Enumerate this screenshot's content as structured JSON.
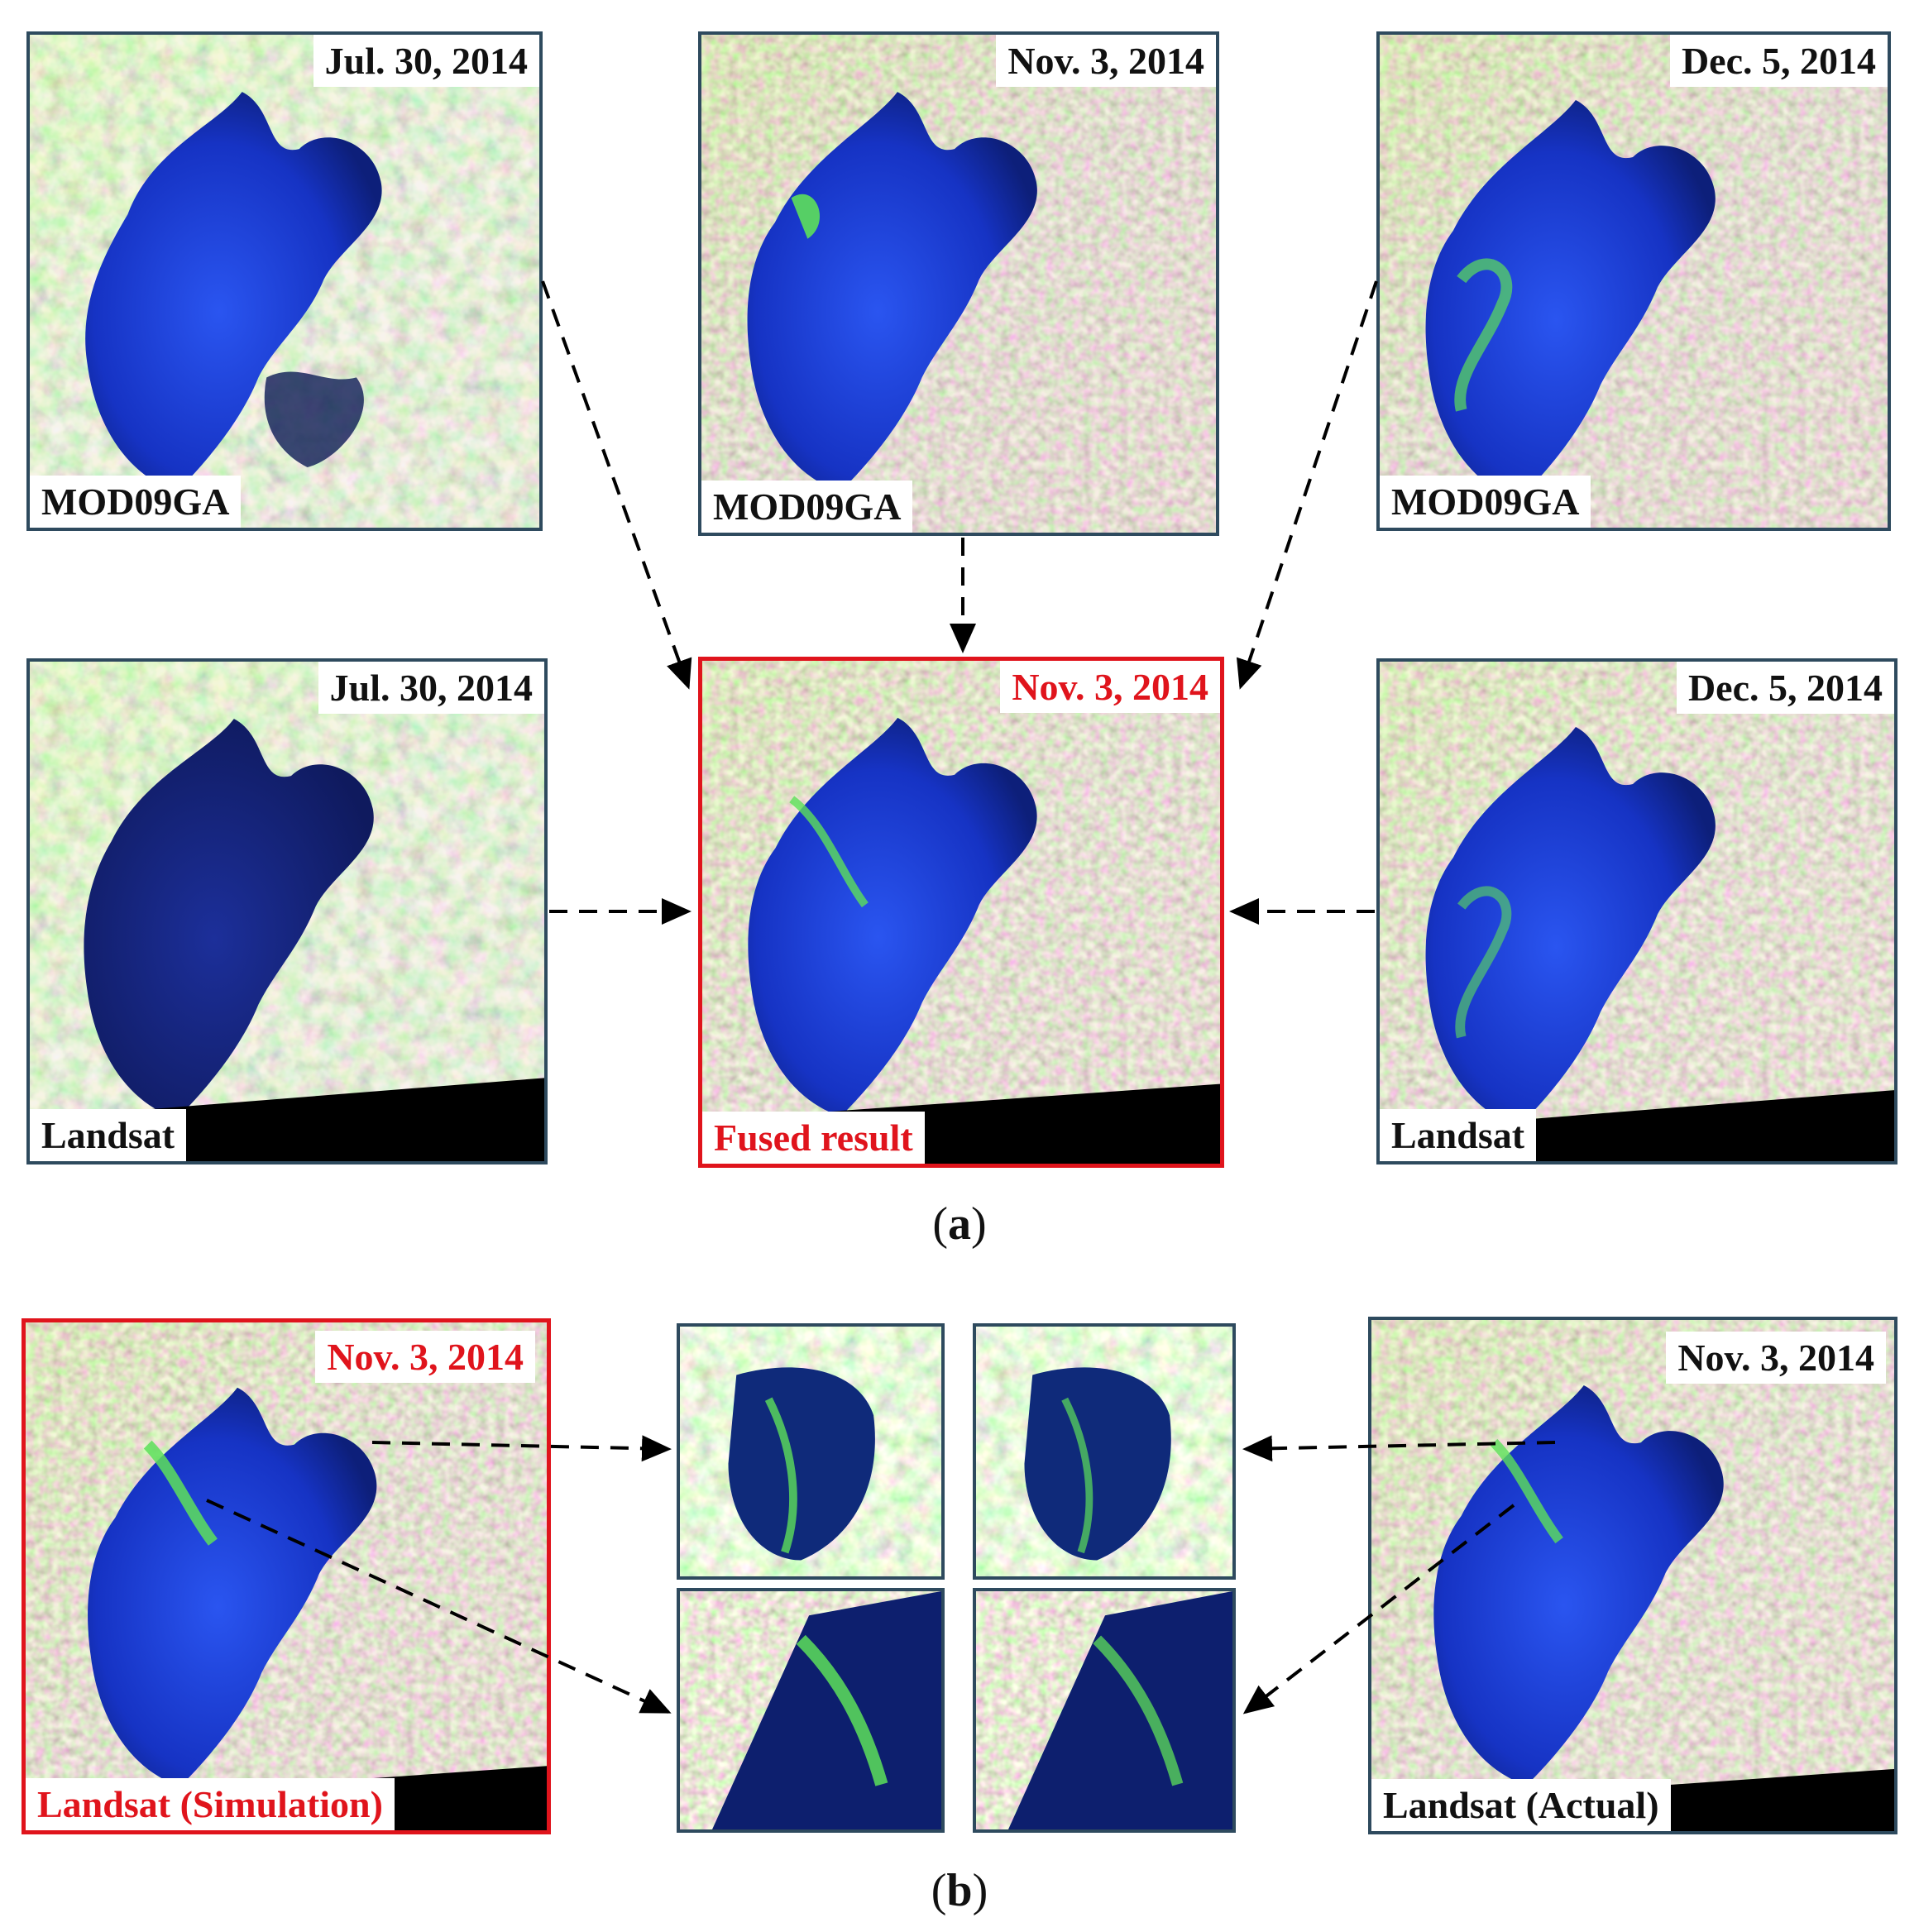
{
  "row_a": {
    "modis": [
      {
        "date": "Jul. 30, 2014",
        "source": "MOD09GA"
      },
      {
        "date": "Nov. 3, 2014",
        "source": "MOD09GA"
      },
      {
        "date": "Dec. 5, 2014",
        "source": "MOD09GA"
      }
    ],
    "landsat": [
      {
        "date": "Jul. 30, 2014",
        "source": "Landsat"
      },
      {
        "date": "Nov. 3, 2014",
        "source": "Fused result"
      },
      {
        "date": "Dec. 5, 2014",
        "source": "Landsat"
      }
    ],
    "caption_letter": "a"
  },
  "row_b": {
    "simulation": {
      "date": "Nov. 3, 2014",
      "source": "Landsat  (Simulation)"
    },
    "actual": {
      "date": "Nov. 3, 2014",
      "source": "Landsat  (Actual)"
    },
    "caption_letter": "b"
  },
  "colors": {
    "highlight": "#e0141c",
    "frame": "#2e4a5e",
    "water": "#1a3ad0",
    "algae": "#5de05a",
    "land_green": "#8fcf3a",
    "land_pink": "#d7a9c4"
  }
}
